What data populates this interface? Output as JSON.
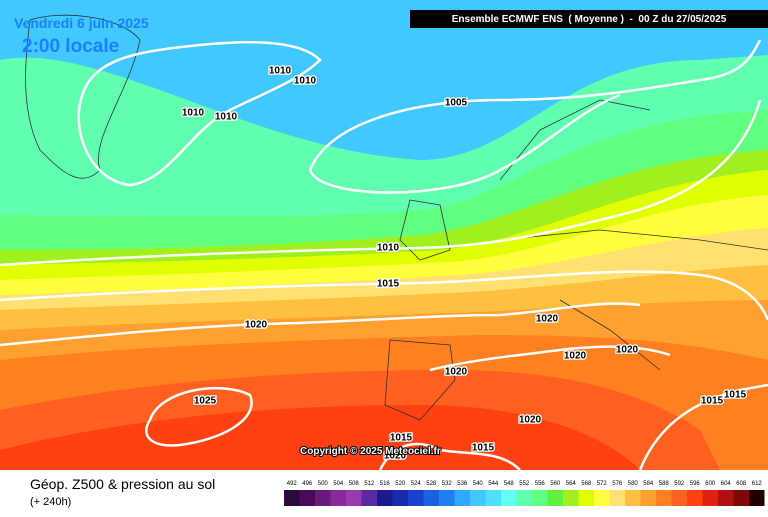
{
  "header": {
    "date": "Vendredi 6 juin 2025",
    "time": "2:00 locale",
    "run": "Ensemble ECMWF ENS  ( Moyenne )  -  00 Z du 27/05/2025"
  },
  "isobars": [
    1010,
    1010,
    1010,
    1010,
    1005,
    1010,
    1015,
    1020,
    1020,
    1020,
    1020,
    1020,
    1025,
    1015,
    1015,
    1020,
    1015,
    1015,
    1020
  ],
  "copyright": "Copyright © 2025 Meteociel.fr",
  "footer": {
    "title": "Géop. Z500 & pression au sol",
    "lead": "(+ 240h)"
  },
  "legend": {
    "values": [
      492,
      496,
      500,
      504,
      508,
      512,
      516,
      520,
      524,
      528,
      532,
      536,
      540,
      544,
      548,
      552,
      556,
      560,
      564,
      568,
      572,
      576,
      580,
      584,
      588,
      592,
      596,
      600,
      604,
      608,
      612
    ],
    "colors": [
      "#2a0a3a",
      "#4a0a5a",
      "#6a1a7a",
      "#8a2a9a",
      "#9a3ab0",
      "#5a2aa0",
      "#1a1a90",
      "#1a2ab0",
      "#1a40d0",
      "#1a60e0",
      "#2080f0",
      "#30a8ff",
      "#40c8ff",
      "#50e0ff",
      "#60fff0",
      "#60ffb0",
      "#60ff80",
      "#60f040",
      "#a0f020",
      "#e0ff00",
      "#ffff40",
      "#ffe070",
      "#ffc040",
      "#ffa030",
      "#ff8020",
      "#ff6020",
      "#ff4010",
      "#e02010",
      "#b01010",
      "#800808",
      "#200000"
    ]
  }
}
